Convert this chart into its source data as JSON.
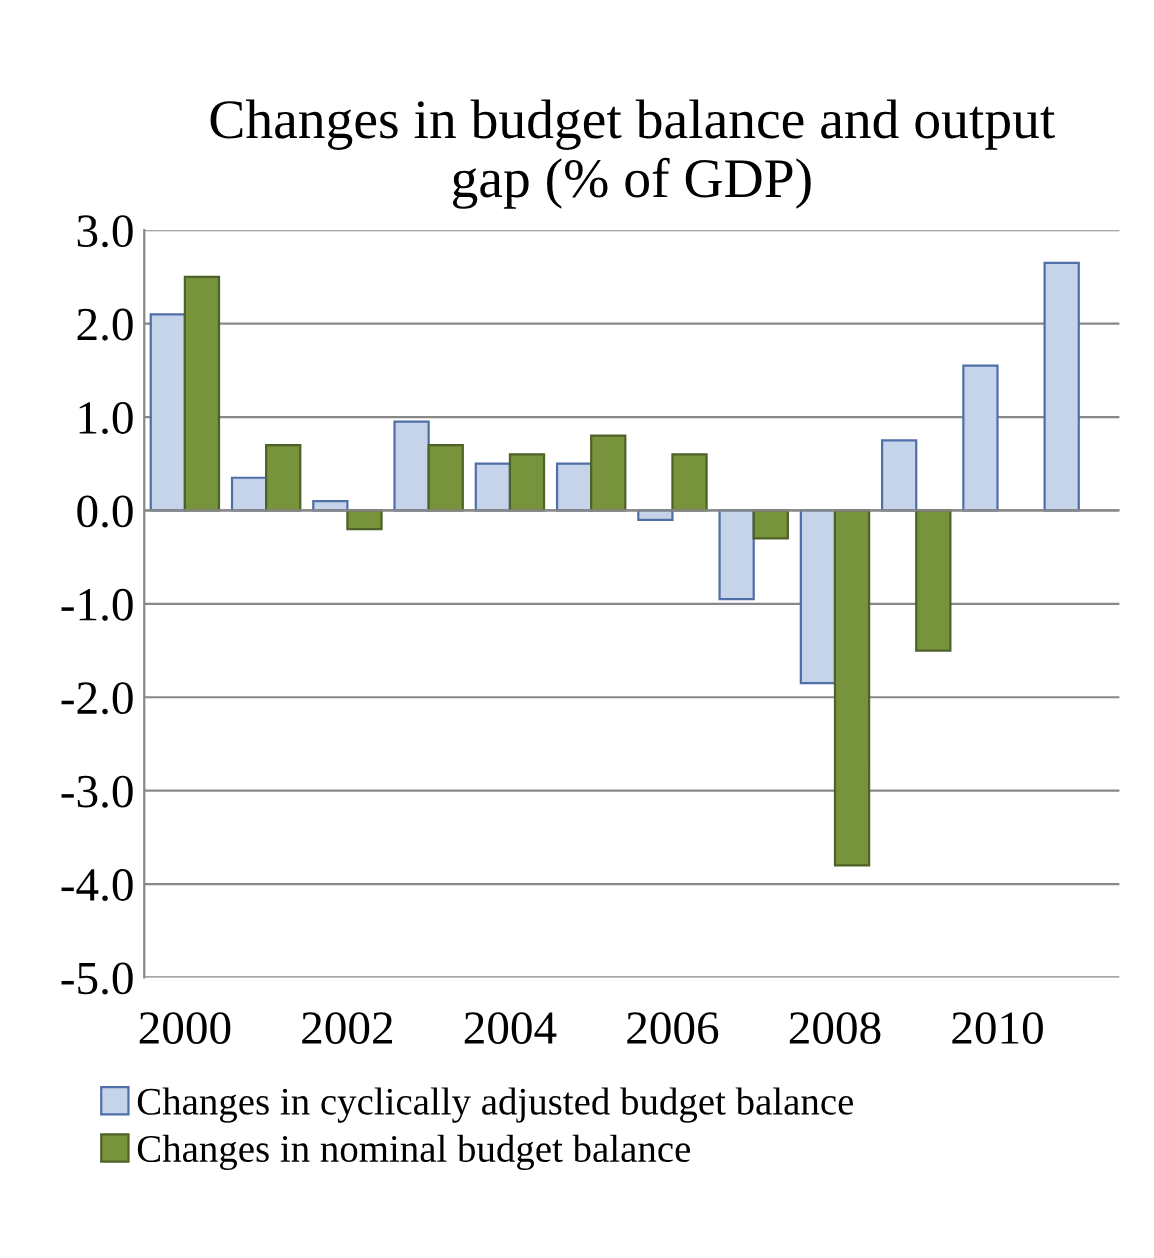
{
  "chart_data": {
    "type": "bar",
    "title": "Changes in budget balance and output\ngap (% of GDP)",
    "categories": [
      "2000",
      null,
      "2002",
      null,
      "2004",
      null,
      "2006",
      null,
      "2008",
      null,
      "2010",
      null
    ],
    "series": [
      {
        "name": "Changes in cyclically adjusted budget balance",
        "color": "#c6d4ea",
        "values": [
          2.1,
          0.35,
          0.1,
          0.95,
          0.5,
          0.5,
          -0.1,
          -0.95,
          -1.85,
          0.75,
          1.55,
          2.65
        ]
      },
      {
        "name": "Changes in nominal budget balance",
        "color": "#77933c",
        "values": [
          2.5,
          0.7,
          -0.2,
          0.7,
          0.6,
          0.8,
          0.6,
          -0.3,
          -3.8,
          -1.5,
          null,
          null
        ]
      }
    ],
    "ylim": [
      -5,
      3
    ],
    "yticks": [
      {
        "value": -5,
        "label": "-5.0"
      },
      {
        "value": -4,
        "label": "-4.0"
      },
      {
        "value": -3,
        "label": "-3.0"
      },
      {
        "value": -2,
        "label": "-2.0"
      },
      {
        "value": -1,
        "label": "-1.0"
      },
      {
        "value": 0,
        "label": "0.0"
      },
      {
        "value": 1,
        "label": "1.0"
      },
      {
        "value": 2,
        "label": "2.0"
      },
      {
        "value": 3,
        "label": "3.0"
      }
    ],
    "grid": "y",
    "legend": "bottom"
  }
}
